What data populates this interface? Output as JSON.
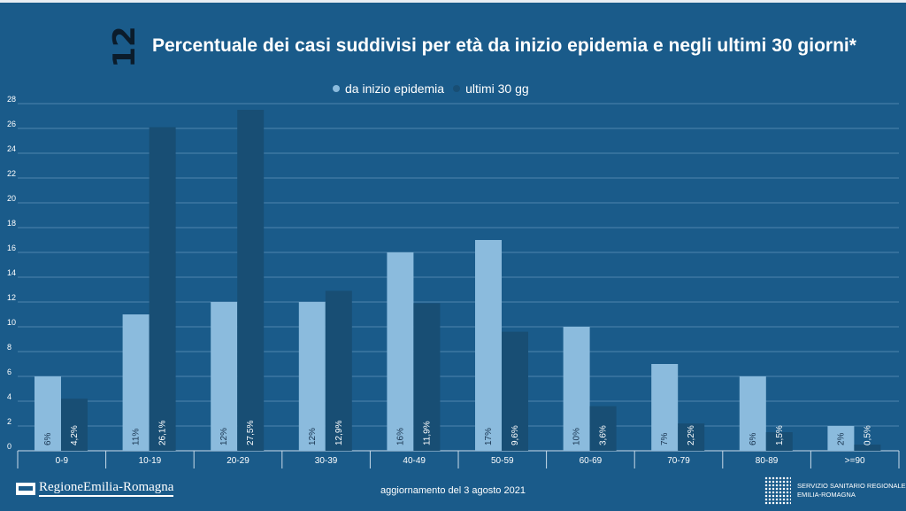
{
  "slide": {
    "number": "12"
  },
  "chart_data": {
    "type": "bar",
    "title": "Percentuale dei casi suddivisi per età da inizio epidemia e negli ultimi 30 giorni*",
    "categories": [
      "0-9",
      "10-19",
      "20-29",
      "30-39",
      "40-49",
      "50-59",
      "60-69",
      "70-79",
      "80-89",
      ">=90"
    ],
    "series": [
      {
        "name": "da inizio epidemia",
        "color": "#8bbbdd",
        "values": [
          6,
          11,
          12,
          12,
          16,
          17,
          10,
          7,
          6,
          2
        ],
        "labels": [
          "6%",
          "11%",
          "12%",
          "12%",
          "16%",
          "17%",
          "10%",
          "7%",
          "6%",
          "2%"
        ]
      },
      {
        "name": "ultimi 30 gg",
        "color": "#184e74",
        "values": [
          4.2,
          26.1,
          27.5,
          12.9,
          11.9,
          9.6,
          3.6,
          2.2,
          1.5,
          0.5
        ],
        "labels": [
          "4,2%",
          "26,1%",
          "27,5%",
          "12,9%",
          "11,9%",
          "9,6%",
          "3,6%",
          "2,2%",
          "1,5%",
          "0,5%"
        ]
      }
    ],
    "yticks": [
      "0",
      "2",
      "4",
      "6",
      "8",
      "10",
      "12",
      "14",
      "16",
      "18",
      "20",
      "22",
      "24",
      "26",
      "28"
    ],
    "ylim": [
      0,
      28
    ],
    "grid": true,
    "legend_position": "top"
  },
  "footer": {
    "logo_left": "RegioneEmilia-Romagna",
    "update_text": "aggiornamento del 3 agosto 2021",
    "logo_right_line1": "SERVIZIO SANITARIO REGIONALE",
    "logo_right_line2": "EMILIA-ROMAGNA"
  }
}
